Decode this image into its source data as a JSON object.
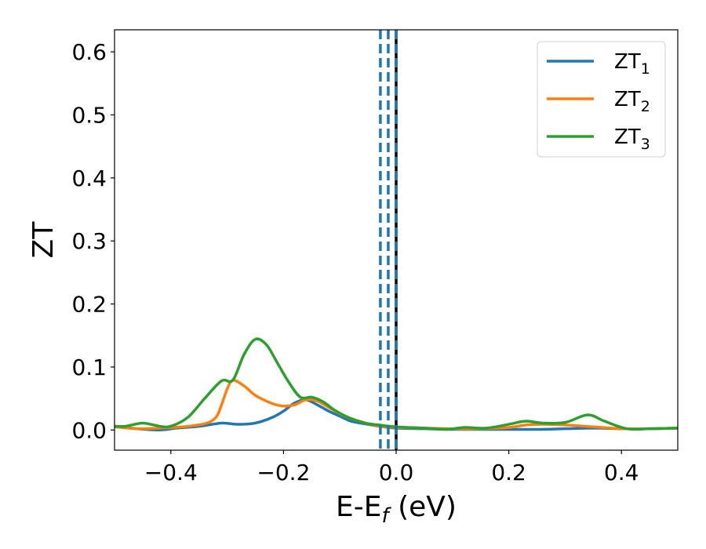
{
  "chart_data": {
    "type": "line",
    "title": "",
    "xlabel": "E-E",
    "xlabel_sub": "f",
    "xlabel_unit": " (eV)",
    "ylabel": "ZT",
    "xlim": [
      -0.5,
      0.5
    ],
    "ylim": [
      -0.032,
      0.635
    ],
    "xticks": [
      -0.4,
      -0.2,
      0.0,
      0.2,
      0.4
    ],
    "xtick_labels": [
      "−0.4",
      "−0.2",
      "0.0",
      "0.2",
      "0.4"
    ],
    "yticks": [
      0.0,
      0.1,
      0.2,
      0.3,
      0.4,
      0.5,
      0.6
    ],
    "ytick_labels": [
      "0.0",
      "0.1",
      "0.2",
      "0.3",
      "0.4",
      "0.5",
      "0.6"
    ],
    "grid": false,
    "legend_position": "top-right",
    "vlines": [
      {
        "x": -0.028,
        "color": "#1f77b4",
        "style": "dashed"
      },
      {
        "x": -0.014,
        "color": "#1f77b4",
        "style": "dashed"
      },
      {
        "x": 0.0,
        "color": "#000000",
        "style": "solid"
      },
      {
        "x": 0.0,
        "color": "#1f77b4",
        "style": "dashed"
      }
    ],
    "series": [
      {
        "name": "ZT",
        "subscript": "1",
        "color": "#1f77b4",
        "x": [
          -0.5,
          -0.46,
          -0.42,
          -0.39,
          -0.36,
          -0.34,
          -0.31,
          -0.28,
          -0.25,
          -0.22,
          -0.2,
          -0.18,
          -0.16,
          -0.14,
          -0.12,
          -0.1,
          -0.08,
          -0.05,
          -0.03,
          0.0,
          0.05,
          0.1,
          0.15,
          0.2,
          0.25,
          0.3,
          0.35,
          0.4,
          0.45,
          0.5
        ],
        "y": [
          0.006,
          0.002,
          0.0,
          0.003,
          0.005,
          0.007,
          0.011,
          0.009,
          0.011,
          0.02,
          0.03,
          0.043,
          0.048,
          0.04,
          0.03,
          0.022,
          0.014,
          0.009,
          0.006,
          0.003,
          0.002,
          0.001,
          0.001,
          0.001,
          0.001,
          0.002,
          0.003,
          0.002,
          0.002,
          0.003
        ]
      },
      {
        "name": "ZT",
        "subscript": "2",
        "color": "#ff7f0e",
        "x": [
          -0.5,
          -0.46,
          -0.42,
          -0.38,
          -0.34,
          -0.32,
          -0.31,
          -0.3,
          -0.29,
          -0.27,
          -0.25,
          -0.22,
          -0.2,
          -0.18,
          -0.16,
          -0.14,
          -0.12,
          -0.1,
          -0.08,
          -0.05,
          -0.03,
          0.0,
          0.05,
          0.1,
          0.15,
          0.2,
          0.23,
          0.26,
          0.3,
          0.35,
          0.4,
          0.45,
          0.5
        ],
        "y": [
          0.005,
          0.002,
          0.003,
          0.005,
          0.01,
          0.02,
          0.04,
          0.065,
          0.079,
          0.07,
          0.055,
          0.042,
          0.038,
          0.04,
          0.048,
          0.046,
          0.036,
          0.026,
          0.018,
          0.01,
          0.006,
          0.004,
          0.003,
          0.002,
          0.002,
          0.004,
          0.008,
          0.009,
          0.008,
          0.005,
          0.002,
          0.002,
          0.003
        ]
      },
      {
        "name": "ZT",
        "subscript": "3",
        "color": "#2ca02c",
        "x": [
          -0.5,
          -0.48,
          -0.45,
          -0.42,
          -0.4,
          -0.37,
          -0.34,
          -0.31,
          -0.29,
          -0.27,
          -0.25,
          -0.23,
          -0.21,
          -0.19,
          -0.17,
          -0.15,
          -0.13,
          -0.11,
          -0.09,
          -0.07,
          -0.05,
          -0.03,
          0.0,
          0.05,
          0.09,
          0.12,
          0.16,
          0.2,
          0.23,
          0.26,
          0.3,
          0.34,
          0.37,
          0.41,
          0.45,
          0.5
        ],
        "y": [
          0.006,
          0.006,
          0.011,
          0.006,
          0.006,
          0.02,
          0.05,
          0.078,
          0.079,
          0.12,
          0.144,
          0.135,
          0.105,
          0.075,
          0.052,
          0.052,
          0.045,
          0.032,
          0.022,
          0.015,
          0.01,
          0.008,
          0.005,
          0.003,
          0.001,
          0.004,
          0.003,
          0.009,
          0.014,
          0.011,
          0.012,
          0.024,
          0.014,
          0.002,
          0.002,
          0.003
        ]
      }
    ]
  }
}
